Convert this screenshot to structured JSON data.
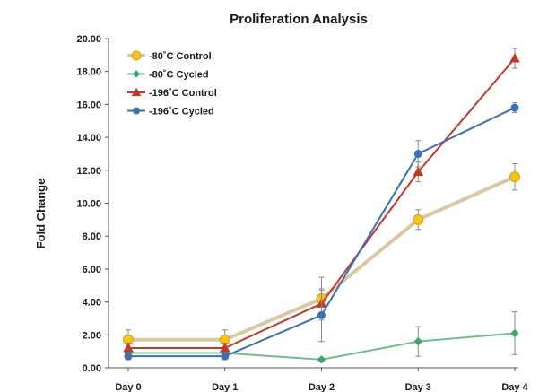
{
  "chart_data": {
    "type": "line",
    "title": "Proliferation Analysis",
    "xlabel": "",
    "ylabel": "Fold Change",
    "categories": [
      "Day 0",
      "Day 1",
      "Day 2",
      "Day 3",
      "Day 4"
    ],
    "ylim": [
      0,
      20
    ],
    "yticks": [
      "0.00",
      "2.00",
      "4.00",
      "6.00",
      "8.00",
      "10.00",
      "12.00",
      "14.00",
      "16.00",
      "18.00",
      "20.00"
    ],
    "grid": false,
    "legend_position": "top-left",
    "series": [
      {
        "name": "-80˚C Control",
        "color": "#d9c9a0",
        "marker_color": "#f5c518",
        "marker": "circle",
        "values": [
          1.7,
          1.7,
          4.2,
          9.0,
          11.6
        ],
        "errors": [
          0.6,
          0.6,
          1.3,
          0.6,
          0.8
        ]
      },
      {
        "name": "-80˚C Cycled",
        "color": "#6bbf8e",
        "marker_color": "#3aa86b",
        "marker": "diamond",
        "values": [
          0.9,
          0.9,
          0.5,
          1.6,
          2.1
        ],
        "errors": [
          0.3,
          0.3,
          0.1,
          0.9,
          1.3
        ]
      },
      {
        "name": "-196˚C Control",
        "color": "#c0392b",
        "marker_color": "#c0392b",
        "marker": "triangle",
        "values": [
          1.2,
          1.2,
          3.9,
          11.9,
          18.8
        ],
        "errors": [
          0.3,
          0.3,
          0.8,
          0.6,
          0.6
        ]
      },
      {
        "name": "-196˚C Cycled",
        "color": "#3b6fb6",
        "marker_color": "#3b6fb6",
        "marker": "circle",
        "values": [
          0.7,
          0.7,
          3.2,
          13.0,
          15.8
        ],
        "errors": [
          0.2,
          0.2,
          1.6,
          0.8,
          0.3
        ]
      }
    ]
  }
}
